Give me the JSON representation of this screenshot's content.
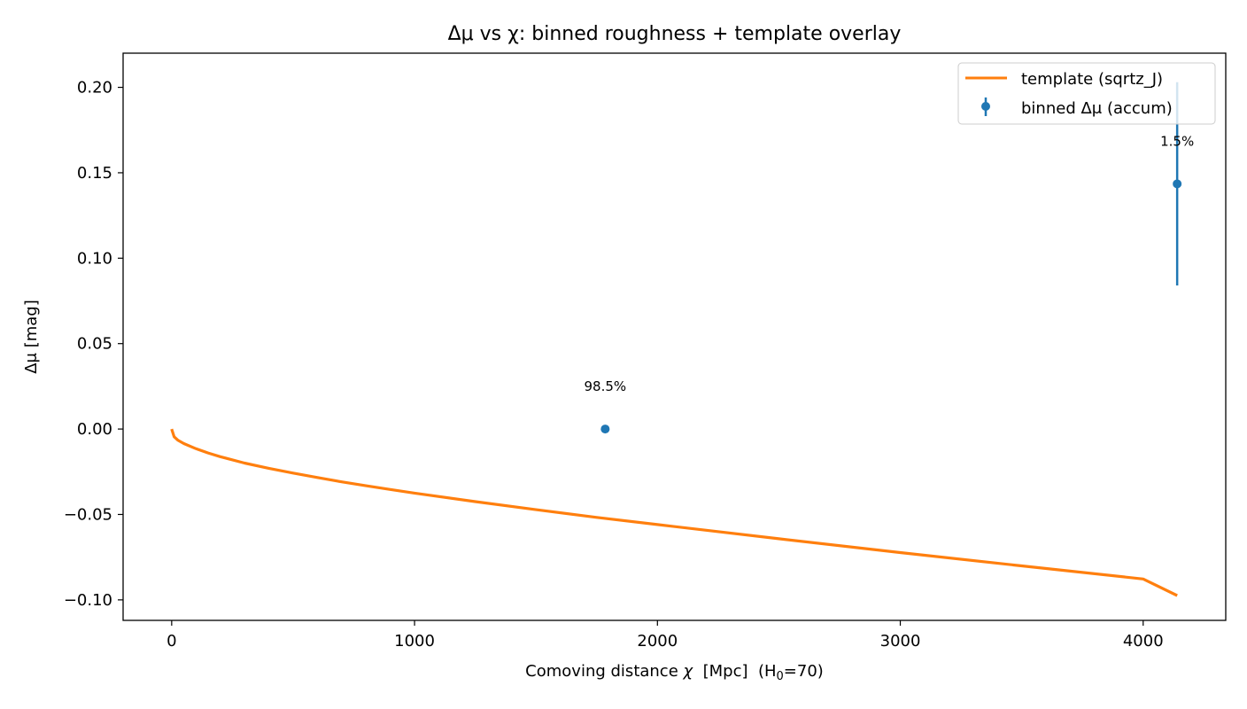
{
  "chart_data": {
    "type": "line",
    "title": "Δμ vs χ: binned roughness + template overlay",
    "xlabel": {
      "main": "Comoving distance ",
      "symbol": "χ",
      "units": "  [Mpc]  (H",
      "subscript": "0",
      "tail": "=70)"
    },
    "ylabel": "Δμ [mag]",
    "xlim": [
      -200,
      4340
    ],
    "ylim": [
      -0.112,
      0.22
    ],
    "xticks": [
      0,
      1000,
      2000,
      3000,
      4000
    ],
    "xtick_labels": [
      "0",
      "1000",
      "2000",
      "3000",
      "4000"
    ],
    "yticks": [
      -0.1,
      -0.05,
      0.0,
      0.05,
      0.1,
      0.15,
      0.2
    ],
    "ytick_labels": [
      "−0.10",
      "−0.05",
      "0.00",
      "0.05",
      "0.10",
      "0.15",
      "0.20"
    ],
    "grid": false,
    "legend_position": "top-right",
    "series": [
      {
        "name": "template (sqrtz_J)",
        "kind": "line",
        "color": "#ff7f0e",
        "x": [
          0,
          10,
          25,
          50,
          100,
          150,
          200,
          300,
          400,
          500,
          600,
          700,
          800,
          900,
          1000,
          1250,
          1500,
          1750,
          2000,
          2500,
          3000,
          3500,
          4000,
          4140
        ],
        "y": [
          0.0,
          -0.0045,
          -0.0065,
          -0.0085,
          -0.0115,
          -0.014,
          -0.0162,
          -0.0199,
          -0.023,
          -0.0258,
          -0.0284,
          -0.0309,
          -0.0332,
          -0.0354,
          -0.0375,
          -0.0425,
          -0.0472,
          -0.0517,
          -0.0559,
          -0.0642,
          -0.0723,
          -0.0801,
          -0.0878,
          -0.0975
        ]
      },
      {
        "name": "binned Δμ (accum)",
        "kind": "errorbar",
        "color": "#1f77b4",
        "x": [
          1785,
          4140
        ],
        "y": [
          0.0,
          0.1435
        ],
        "yerr": [
          0.0,
          0.0595
        ],
        "annotations": [
          "98.5%",
          "1.5%"
        ]
      }
    ]
  }
}
